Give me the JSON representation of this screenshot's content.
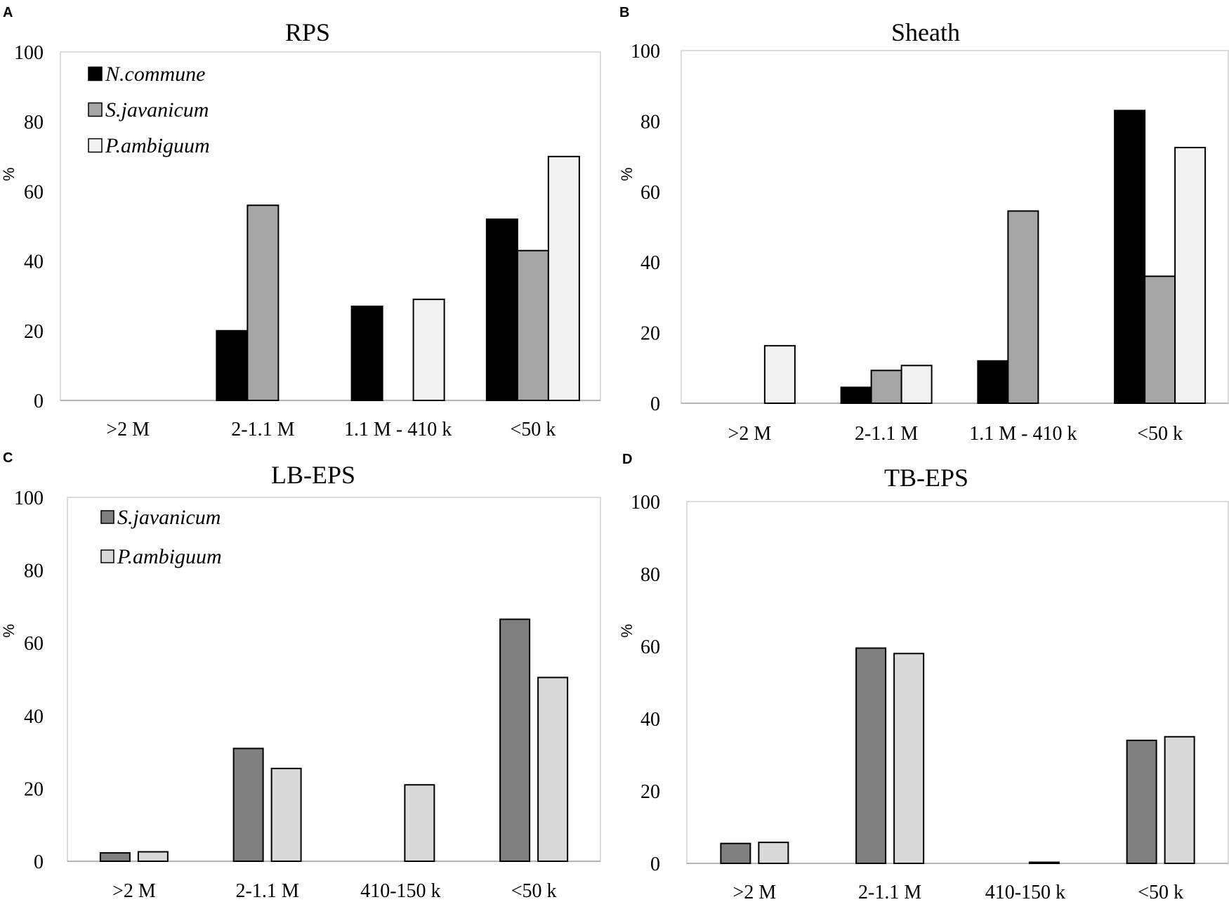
{
  "chart_data": [
    {
      "panel": "A",
      "type": "bar",
      "title": "RPS",
      "ylabel": "%",
      "ylim": [
        0,
        100
      ],
      "yticks": [
        "0",
        "20",
        "40",
        "60",
        "80",
        "100"
      ],
      "categories": [
        ">2 M",
        "2-1.1 M",
        "1.1 M - 410 k",
        "<50 k"
      ],
      "series": [
        {
          "name": "N.commune",
          "color": "#000000",
          "values": [
            0,
            20,
            27,
            52
          ]
        },
        {
          "name": "S.javanicum",
          "color": "#a6a6a6",
          "values": [
            0,
            56,
            0,
            43
          ]
        },
        {
          "name": "P.ambiguum",
          "color": "#f2f2f2",
          "values": [
            0,
            0,
            29,
            70
          ]
        }
      ],
      "legend_position": "top-left"
    },
    {
      "panel": "B",
      "type": "bar",
      "title": "Sheath",
      "ylabel": "%",
      "ylim": [
        0,
        100
      ],
      "yticks": [
        "0",
        "20",
        "40",
        "60",
        "80",
        "100"
      ],
      "categories": [
        ">2 M",
        "2-1.1 M",
        "1.1 M - 410 k",
        "<50 k"
      ],
      "series": [
        {
          "name": "N.commune",
          "color": "#000000",
          "values": [
            0,
            4.5,
            12,
            83
          ]
        },
        {
          "name": "S.javanicum",
          "color": "#a6a6a6",
          "values": [
            0,
            9.3,
            54.5,
            36
          ]
        },
        {
          "name": "P.ambiguum",
          "color": "#f2f2f2",
          "values": [
            16.3,
            10.7,
            0,
            72.5
          ]
        }
      ],
      "legend_position": "none"
    },
    {
      "panel": "C",
      "type": "bar",
      "title": "LB-EPS",
      "ylabel": "%",
      "ylim": [
        0,
        100
      ],
      "yticks": [
        "0",
        "20",
        "40",
        "60",
        "80",
        "100"
      ],
      "categories": [
        ">2 M",
        "2-1.1 M",
        "410-150 k",
        "<50 k"
      ],
      "series": [
        {
          "name": "S.javanicum",
          "color": "#808080",
          "values": [
            2.3,
            31,
            0,
            66.5
          ]
        },
        {
          "name": "P.ambiguum",
          "color": "#d9d9d9",
          "values": [
            2.6,
            25.5,
            21,
            50.5
          ]
        }
      ],
      "legend_position": "top-left"
    },
    {
      "panel": "D",
      "type": "bar",
      "title": "TB-EPS",
      "ylabel": "%",
      "ylim": [
        0,
        100
      ],
      "yticks": [
        "0",
        "20",
        "40",
        "60",
        "80",
        "100"
      ],
      "categories": [
        ">2 M",
        "2-1.1 M",
        "410-150 k",
        "<50 k"
      ],
      "series": [
        {
          "name": "S.javanicum",
          "color": "#808080",
          "values": [
            5.5,
            59.5,
            0,
            34
          ]
        },
        {
          "name": "P.ambiguum",
          "color": "#d9d9d9",
          "values": [
            5.8,
            58,
            0.3,
            35
          ]
        }
      ],
      "legend_position": "none"
    }
  ]
}
